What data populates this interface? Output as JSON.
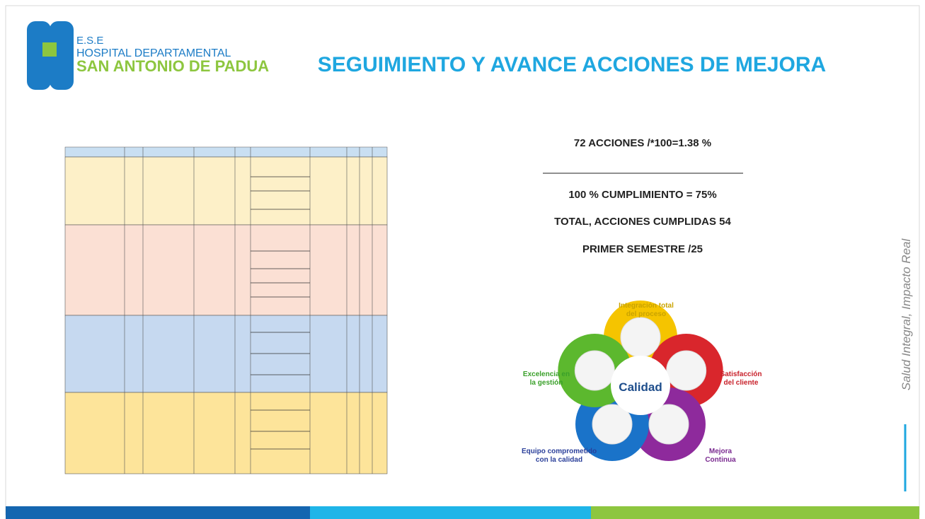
{
  "logo": {
    "top": "E.S.E",
    "line1": "HOSPITAL DEPARTAMENTAL",
    "line2": "SAN ANTONIO DE PADUA"
  },
  "title": "SEGUIMIENTO Y AVANCE ACCIONES DE MEJORA",
  "stats": {
    "formula": "72 ACCIONES /*100=1.38 %",
    "compliance": "100 % CUMPLIMIENTO = 75%",
    "total": "TOTAL, ACCIONES CUMPLIDAS 54",
    "period": "PRIMER SEMESTRE /25"
  },
  "side_text": "Salud Integral, Impacto Real",
  "diagram": {
    "center": "Calidad",
    "labels": [
      {
        "lines": [
          "Integración total",
          "del proceso"
        ]
      },
      {
        "lines": [
          "Satisfacción",
          "del cliente"
        ]
      },
      {
        "lines": [
          "Mejora",
          "Continua"
        ]
      },
      {
        "lines": [
          "Equipo comprometido",
          "con la calidad"
        ]
      },
      {
        "lines": [
          "Excelencia en",
          "la gestión"
        ]
      }
    ]
  }
}
